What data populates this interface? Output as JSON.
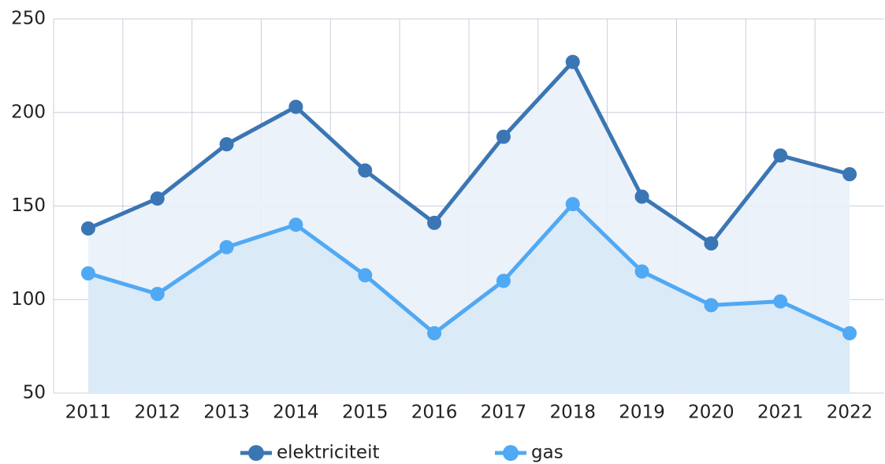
{
  "chart_data": {
    "type": "area-line",
    "categories": [
      "2011",
      "2012",
      "2013",
      "2014",
      "2015",
      "2016",
      "2017",
      "2018",
      "2019",
      "2020",
      "2021",
      "2022"
    ],
    "series": [
      {
        "name": "elektriciteit",
        "color": "#3b76b4",
        "values": [
          138,
          154,
          183,
          203,
          169,
          141,
          187,
          227,
          155,
          130,
          177,
          167
        ]
      },
      {
        "name": "gas",
        "color": "#50a9f4",
        "values": [
          114,
          103,
          128,
          140,
          113,
          82,
          110,
          151,
          115,
          97,
          99,
          82
        ]
      }
    ],
    "ylim": [
      50,
      250
    ],
    "yticks": [
      50,
      100,
      150,
      200,
      250
    ],
    "grid": true,
    "legend": "bottom"
  }
}
